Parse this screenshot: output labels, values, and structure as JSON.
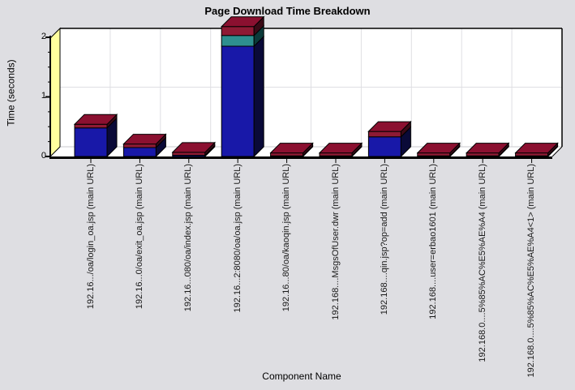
{
  "title": "Page Download Time Breakdown",
  "colors": {
    "background": "#DEDEE2",
    "plot_fill": "#FFFFFF",
    "left_wall": "#FFFF9E",
    "grid": "#DFDFE3",
    "axis": "#000000",
    "blue_front": "#1818A8",
    "blue_side": "#0A0A38",
    "teal_front": "#2E8F8F",
    "teal_side": "#0B3A3A",
    "maroon_front": "#8E1A34",
    "maroon_side": "#3A0A16",
    "maroon_top": "#8B1030"
  },
  "chart_data": {
    "type": "bar",
    "stacked": true,
    "three_d": true,
    "title": "Page Download Time Breakdown",
    "xlabel": "Component Name",
    "ylabel": "Time (seconds)",
    "ylim": [
      0,
      2.2
    ],
    "yticks": [
      0,
      1,
      2
    ],
    "minor_tick_step": 0.25,
    "grid": true,
    "legend_position": "none",
    "categories": [
      "192.16.../oa/login_oa.jsp (main URL)",
      "192.16...0/oa/exit_oa.jsp (main URL)",
      "192.16...080/oa/index.jsp (main URL)",
      "192.16...2:8080/oa/oa.jsp (main URL)",
      "192.16...80/oa/kaoqin.jsp (main URL)",
      "192.168....MsgsOfUser.dwr (main URL)",
      "192.168....qin.jsp?op=add (main URL)",
      "192.168....user=erbao1601 (main URL)",
      "192.168.0....5%85%AC%E5%AE%A4 (main URL)",
      "192.168.0....5%85%AC%E5%AE%A4<1> (main URL)"
    ],
    "series": [
      {
        "name": "blue",
        "color": "#1818A8",
        "side_color": "#0A0A38",
        "values": [
          0.48,
          0.15,
          0.02,
          1.85,
          0.01,
          0.01,
          0.33,
          0.01,
          0.01,
          0.01
        ]
      },
      {
        "name": "teal",
        "color": "#2E8F8F",
        "side_color": "#0B3A3A",
        "values": [
          0,
          0,
          0,
          0.18,
          0,
          0,
          0,
          0,
          0,
          0
        ]
      },
      {
        "name": "maroon",
        "color": "#8E1A34",
        "side_color": "#3A0A16",
        "top_color": "#8B1030",
        "values": [
          0.06,
          0.06,
          0.05,
          0.15,
          0.05,
          0.05,
          0.09,
          0.05,
          0.05,
          0.05
        ]
      }
    ]
  }
}
